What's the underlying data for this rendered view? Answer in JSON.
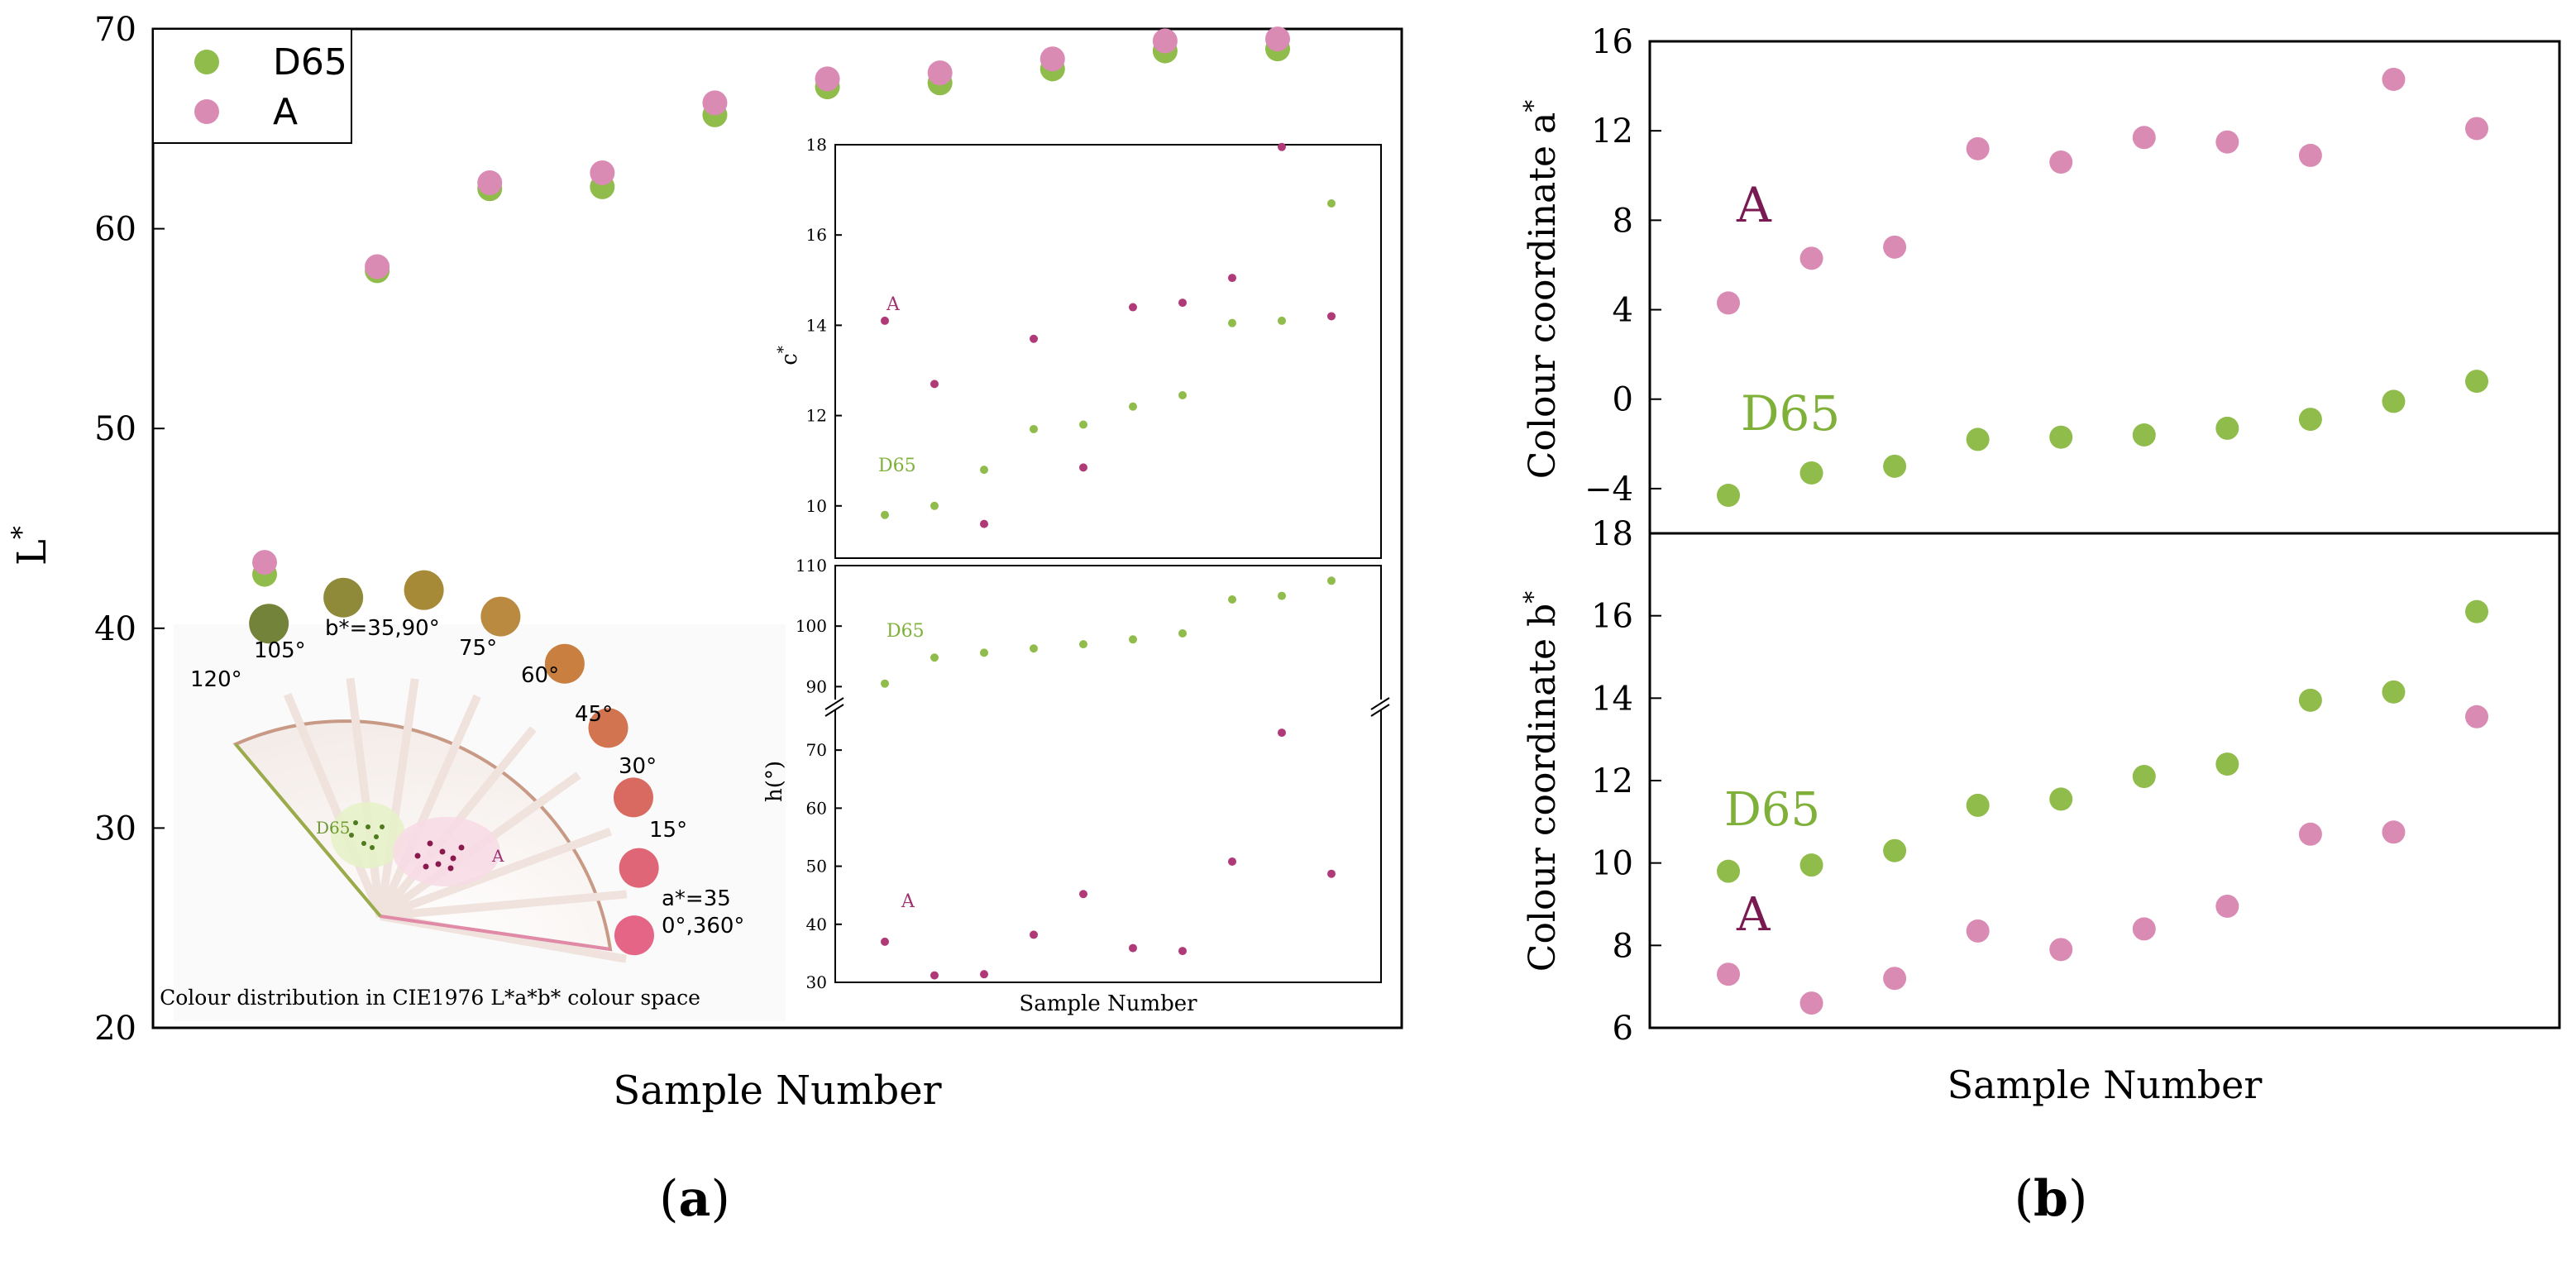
{
  "colors": {
    "d65": "#8fbc4a",
    "a": "#d98bb4",
    "a_dark": "#b03a78",
    "a_label": "#7a1a52",
    "d65_label": "#7fb03a",
    "axis": "#000000"
  },
  "panel_labels": {
    "a": "a",
    "b": "b"
  },
  "chart_data": [
    {
      "id": "L",
      "type": "scatter",
      "xlabel": "Sample Number",
      "ylabel": "L",
      "ylabel_sup": "*",
      "ylim": [
        20,
        70
      ],
      "yticks": [
        "20",
        "30",
        "40",
        "50",
        "60",
        "70"
      ],
      "x": [
        1,
        2,
        3,
        4,
        5,
        6,
        7,
        8,
        9,
        10
      ],
      "legend": {
        "placement": "top-left",
        "entries": [
          "D65",
          "A"
        ]
      },
      "series": [
        {
          "name": "D65",
          "values": [
            42.7,
            57.9,
            62.0,
            62.1,
            65.7,
            67.1,
            67.3,
            68.0,
            68.9,
            69.0
          ]
        },
        {
          "name": "A",
          "values": [
            43.3,
            58.1,
            62.3,
            62.8,
            66.3,
            67.5,
            67.8,
            68.5,
            69.4,
            69.5
          ]
        }
      ]
    },
    {
      "id": "C",
      "type": "scatter",
      "inset": true,
      "ylabel": "c",
      "ylabel_sup": "*",
      "ylim": [
        9.3,
        18
      ],
      "yticks": [
        "10",
        "12",
        "14",
        "16",
        "18"
      ],
      "x": [
        1,
        2,
        3,
        4,
        5,
        6,
        7,
        8,
        9,
        10
      ],
      "annotations": [
        "A",
        "D65"
      ],
      "series": [
        {
          "name": "D65",
          "values": [
            9.8,
            10.0,
            10.8,
            11.7,
            11.8,
            12.2,
            12.45,
            14.05,
            14.1,
            16.7
          ]
        },
        {
          "name": "A",
          "values": [
            14.1,
            12.7,
            9.6,
            13.7,
            10.85,
            14.4,
            14.5,
            15.05,
            17.95,
            14.2
          ]
        }
      ]
    },
    {
      "id": "H",
      "type": "scatter",
      "inset": true,
      "broken_axis": true,
      "xlabel": "Sample Number",
      "ylabel": "h(°)",
      "ylim_upper": [
        88,
        110
      ],
      "ylim_lower": [
        30,
        77
      ],
      "yticks_upper": [
        "90",
        "100",
        "110"
      ],
      "yticks_lower": [
        "30",
        "40",
        "50",
        "60",
        "70"
      ],
      "x": [
        1,
        2,
        3,
        4,
        5,
        6,
        7,
        8,
        9,
        10
      ],
      "annotations": [
        "D65",
        "A"
      ],
      "series": [
        {
          "name": "D65",
          "values": [
            90.5,
            94.8,
            95.6,
            96.3,
            97.0,
            97.8,
            98.8,
            104.4,
            105.0,
            107.5
          ]
        },
        {
          "name": "A",
          "values": [
            37.0,
            31.2,
            31.4,
            38.2,
            45.2,
            35.9,
            35.4,
            50.8,
            73.0,
            48.7
          ]
        }
      ]
    },
    {
      "id": "a_star",
      "type": "scatter",
      "ylabel": "Colour coordinate a",
      "ylabel_sup": "*",
      "ylim": [
        -6,
        16
      ],
      "yticks": [
        "−4",
        "0",
        "4",
        "8",
        "12",
        "16"
      ],
      "x": [
        1,
        2,
        3,
        4,
        5,
        6,
        7,
        8,
        9,
        10
      ],
      "annotations": [
        "A",
        "D65"
      ],
      "series": [
        {
          "name": "D65",
          "values": [
            -4.3,
            -3.3,
            -3.0,
            -1.8,
            -1.7,
            -1.6,
            -1.3,
            -0.9,
            -0.1,
            0.8
          ]
        },
        {
          "name": "A",
          "values": [
            4.3,
            6.3,
            6.8,
            11.2,
            10.6,
            11.7,
            11.5,
            10.9,
            14.3,
            12.1
          ]
        }
      ]
    },
    {
      "id": "b_star",
      "type": "scatter",
      "xlabel": "Sample Number",
      "ylabel": "Colour coordinate b",
      "ylabel_sup": "*",
      "ylim": [
        6,
        18
      ],
      "yticks": [
        "6",
        "8",
        "10",
        "12",
        "14",
        "16",
        "18"
      ],
      "x": [
        1,
        2,
        3,
        4,
        5,
        6,
        7,
        8,
        9,
        10
      ],
      "annotations": [
        "D65",
        "A"
      ],
      "series": [
        {
          "name": "D65",
          "values": [
            9.8,
            9.95,
            10.3,
            11.4,
            11.55,
            12.1,
            12.4,
            13.95,
            14.15,
            16.1
          ]
        },
        {
          "name": "A",
          "values": [
            7.3,
            6.6,
            7.2,
            8.35,
            7.9,
            8.4,
            8.95,
            10.7,
            10.75,
            13.55
          ]
        }
      ]
    }
  ],
  "color_wheel": {
    "caption": "Colour distribution in CIE1976 L*a*b* colour space",
    "b_axis_label": "b*=35,90°",
    "a_axis_label_1": "a*=35",
    "a_axis_label_2": "0°,360°",
    "region_labels": [
      "D65",
      "A"
    ],
    "hue_labels": [
      "120°",
      "105°",
      "75°",
      "60°",
      "45°",
      "30°",
      "15°"
    ],
    "swatch_colors": [
      "#74833a",
      "#8f8a3a",
      "#a68a38",
      "#b98a3f",
      "#c87f40",
      "#d27450",
      "#d96a62",
      "#df6676",
      "#e46585"
    ]
  }
}
